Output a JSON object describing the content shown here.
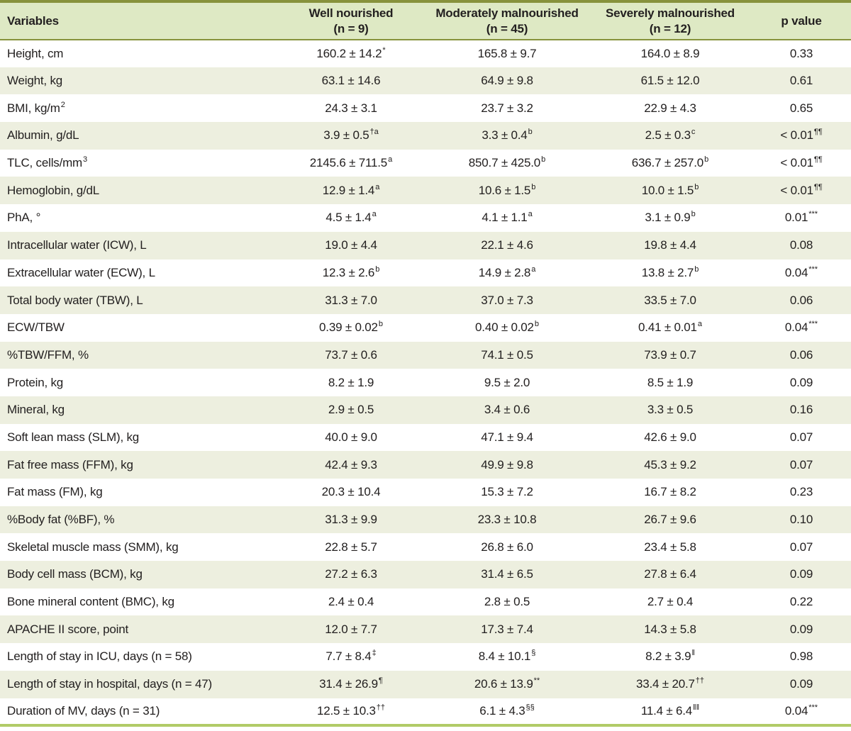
{
  "colors": {
    "header_bg": "#dee9c4",
    "stripe_bg": "#edefdf",
    "rule_top": "#87923c",
    "rule_bottom": "#b1cb67",
    "text": "#232020"
  },
  "table": {
    "columns": [
      {
        "line1": "Variables",
        "line2": ""
      },
      {
        "line1": "Well nourished",
        "line2": "(n = 9)"
      },
      {
        "line1": "Moderately malnourished",
        "line2": "(n = 45)"
      },
      {
        "line1": "Severely malnourished",
        "line2": "(n = 12)"
      },
      {
        "line1": "p value",
        "line2": ""
      }
    ],
    "rows": [
      {
        "label": {
          "t": "Height, cm",
          "sup": ""
        },
        "cells": [
          {
            "v": "160.2 ± 14.2",
            "s": "*"
          },
          {
            "v": "165.8 ± 9.7",
            "s": ""
          },
          {
            "v": "164.0 ± 8.9",
            "s": ""
          },
          {
            "v": "0.33",
            "s": ""
          }
        ]
      },
      {
        "label": {
          "t": "Weight, kg",
          "sup": ""
        },
        "cells": [
          {
            "v": "63.1 ± 14.6",
            "s": ""
          },
          {
            "v": "64.9 ± 9.8",
            "s": ""
          },
          {
            "v": "61.5 ± 12.0",
            "s": ""
          },
          {
            "v": "0.61",
            "s": ""
          }
        ]
      },
      {
        "label": {
          "t": "BMI, kg/m",
          "sup": "2"
        },
        "cells": [
          {
            "v": "24.3 ± 3.1",
            "s": ""
          },
          {
            "v": "23.7 ± 3.2",
            "s": ""
          },
          {
            "v": "22.9 ± 4.3",
            "s": ""
          },
          {
            "v": "0.65",
            "s": ""
          }
        ]
      },
      {
        "label": {
          "t": "Albumin, g/dL",
          "sup": ""
        },
        "cells": [
          {
            "v": "3.9 ± 0.5",
            "s": "†a"
          },
          {
            "v": "3.3 ± 0.4",
            "s": "b"
          },
          {
            "v": "2.5 ± 0.3",
            "s": "c"
          },
          {
            "v": "< 0.01",
            "s": "¶¶"
          }
        ]
      },
      {
        "label": {
          "t": "TLC, cells/mm",
          "sup": "3"
        },
        "cells": [
          {
            "v": "2145.6 ± 711.5",
            "s": "a"
          },
          {
            "v": "850.7 ± 425.0",
            "s": "b"
          },
          {
            "v": "636.7 ± 257.0",
            "s": "b"
          },
          {
            "v": "< 0.01",
            "s": "¶¶"
          }
        ]
      },
      {
        "label": {
          "t": "Hemoglobin, g/dL",
          "sup": ""
        },
        "cells": [
          {
            "v": "12.9 ± 1.4",
            "s": "a"
          },
          {
            "v": "10.6 ± 1.5",
            "s": "b"
          },
          {
            "v": "10.0 ± 1.5",
            "s": "b"
          },
          {
            "v": "< 0.01",
            "s": "¶¶"
          }
        ]
      },
      {
        "label": {
          "t": "PhA, °",
          "sup": ""
        },
        "cells": [
          {
            "v": "4.5 ± 1.4",
            "s": "a"
          },
          {
            "v": "4.1 ± 1.1",
            "s": "a"
          },
          {
            "v": "3.1 ± 0.9",
            "s": "b"
          },
          {
            "v": "0.01",
            "s": "***"
          }
        ]
      },
      {
        "label": {
          "t": "Intracellular water (ICW), L",
          "sup": ""
        },
        "cells": [
          {
            "v": "19.0 ± 4.4",
            "s": ""
          },
          {
            "v": "22.1 ± 4.6",
            "s": ""
          },
          {
            "v": "19.8 ± 4.4",
            "s": ""
          },
          {
            "v": "0.08",
            "s": ""
          }
        ]
      },
      {
        "label": {
          "t": "Extracellular water (ECW), L",
          "sup": ""
        },
        "cells": [
          {
            "v": "12.3 ± 2.6",
            "s": "b"
          },
          {
            "v": "14.9 ± 2.8",
            "s": "a"
          },
          {
            "v": "13.8 ± 2.7",
            "s": "b"
          },
          {
            "v": "0.04",
            "s": "***"
          }
        ]
      },
      {
        "label": {
          "t": "Total body water (TBW), L",
          "sup": ""
        },
        "cells": [
          {
            "v": "31.3 ± 7.0",
            "s": ""
          },
          {
            "v": "37.0 ± 7.3",
            "s": ""
          },
          {
            "v": "33.5 ± 7.0",
            "s": ""
          },
          {
            "v": "0.06",
            "s": ""
          }
        ]
      },
      {
        "label": {
          "t": "ECW/TBW",
          "sup": ""
        },
        "cells": [
          {
            "v": "0.39 ± 0.02",
            "s": "b"
          },
          {
            "v": "0.40 ± 0.02",
            "s": "b"
          },
          {
            "v": "0.41 ± 0.01",
            "s": "a"
          },
          {
            "v": "0.04",
            "s": "***"
          }
        ]
      },
      {
        "label": {
          "t": "%TBW/FFM, %",
          "sup": ""
        },
        "cells": [
          {
            "v": "73.7 ± 0.6",
            "s": ""
          },
          {
            "v": "74.1 ± 0.5",
            "s": ""
          },
          {
            "v": "73.9 ± 0.7",
            "s": ""
          },
          {
            "v": "0.06",
            "s": ""
          }
        ]
      },
      {
        "label": {
          "t": "Protein, kg",
          "sup": ""
        },
        "cells": [
          {
            "v": "8.2 ± 1.9",
            "s": ""
          },
          {
            "v": "9.5 ± 2.0",
            "s": ""
          },
          {
            "v": "8.5 ± 1.9",
            "s": ""
          },
          {
            "v": "0.09",
            "s": ""
          }
        ]
      },
      {
        "label": {
          "t": "Mineral, kg",
          "sup": ""
        },
        "cells": [
          {
            "v": "2.9 ± 0.5",
            "s": ""
          },
          {
            "v": "3.4 ± 0.6",
            "s": ""
          },
          {
            "v": "3.3 ± 0.5",
            "s": ""
          },
          {
            "v": "0.16",
            "s": ""
          }
        ]
      },
      {
        "label": {
          "t": "Soft lean mass (SLM), kg",
          "sup": ""
        },
        "cells": [
          {
            "v": "40.0 ± 9.0",
            "s": ""
          },
          {
            "v": "47.1 ± 9.4",
            "s": ""
          },
          {
            "v": "42.6 ± 9.0",
            "s": ""
          },
          {
            "v": "0.07",
            "s": ""
          }
        ]
      },
      {
        "label": {
          "t": "Fat free mass (FFM), kg",
          "sup": ""
        },
        "cells": [
          {
            "v": "42.4 ± 9.3",
            "s": ""
          },
          {
            "v": "49.9 ± 9.8",
            "s": ""
          },
          {
            "v": "45.3 ± 9.2",
            "s": ""
          },
          {
            "v": "0.07",
            "s": ""
          }
        ]
      },
      {
        "label": {
          "t": "Fat mass (FM), kg",
          "sup": ""
        },
        "cells": [
          {
            "v": "20.3 ± 10.4",
            "s": ""
          },
          {
            "v": "15.3 ± 7.2",
            "s": ""
          },
          {
            "v": "16.7 ± 8.2",
            "s": ""
          },
          {
            "v": "0.23",
            "s": ""
          }
        ]
      },
      {
        "label": {
          "t": "%Body fat (%BF), %",
          "sup": ""
        },
        "cells": [
          {
            "v": "31.3 ± 9.9",
            "s": ""
          },
          {
            "v": "23.3 ± 10.8",
            "s": ""
          },
          {
            "v": "26.7 ± 9.6",
            "s": ""
          },
          {
            "v": "0.10",
            "s": ""
          }
        ]
      },
      {
        "label": {
          "t": "Skeletal muscle mass (SMM), kg",
          "sup": ""
        },
        "cells": [
          {
            "v": "22.8 ± 5.7",
            "s": ""
          },
          {
            "v": "26.8 ± 6.0",
            "s": ""
          },
          {
            "v": "23.4 ± 5.8",
            "s": ""
          },
          {
            "v": "0.07",
            "s": ""
          }
        ]
      },
      {
        "label": {
          "t": "Body cell mass (BCM), kg",
          "sup": ""
        },
        "cells": [
          {
            "v": "27.2 ± 6.3",
            "s": ""
          },
          {
            "v": "31.4 ± 6.5",
            "s": ""
          },
          {
            "v": "27.8 ± 6.4",
            "s": ""
          },
          {
            "v": "0.09",
            "s": ""
          }
        ]
      },
      {
        "label": {
          "t": "Bone mineral content (BMC), kg",
          "sup": ""
        },
        "cells": [
          {
            "v": "2.4 ± 0.4",
            "s": ""
          },
          {
            "v": "2.8 ± 0.5",
            "s": ""
          },
          {
            "v": "2.7 ± 0.4",
            "s": ""
          },
          {
            "v": "0.22",
            "s": ""
          }
        ]
      },
      {
        "label": {
          "t": "APACHE II score, point",
          "sup": ""
        },
        "cells": [
          {
            "v": "12.0 ± 7.7",
            "s": ""
          },
          {
            "v": "17.3 ± 7.4",
            "s": ""
          },
          {
            "v": "14.3 ± 5.8",
            "s": ""
          },
          {
            "v": "0.09",
            "s": ""
          }
        ]
      },
      {
        "label": {
          "t": "Length of stay in ICU, days (n = 58)",
          "sup": ""
        },
        "cells": [
          {
            "v": "7.7 ± 8.4",
            "s": "‡"
          },
          {
            "v": "8.4 ± 10.1",
            "s": "§"
          },
          {
            "v": "8.2 ± 3.9",
            "s": "‖"
          },
          {
            "v": "0.98",
            "s": ""
          }
        ]
      },
      {
        "label": {
          "t": "Length of stay in hospital, days (n = 47)",
          "sup": ""
        },
        "cells": [
          {
            "v": "31.4 ± 26.9",
            "s": "¶"
          },
          {
            "v": "20.6 ± 13.9",
            "s": "**"
          },
          {
            "v": "33.4 ± 20.7",
            "s": "††"
          },
          {
            "v": "0.09",
            "s": ""
          }
        ]
      },
      {
        "label": {
          "t": "Duration of MV, days (n = 31)",
          "sup": ""
        },
        "cells": [
          {
            "v": "12.5 ± 10.3",
            "s": "††"
          },
          {
            "v": "6.1 ± 4.3",
            "s": "§§"
          },
          {
            "v": "11.4 ± 6.4",
            "s": "‖‖"
          },
          {
            "v": "0.04",
            "s": "***"
          }
        ]
      }
    ]
  }
}
